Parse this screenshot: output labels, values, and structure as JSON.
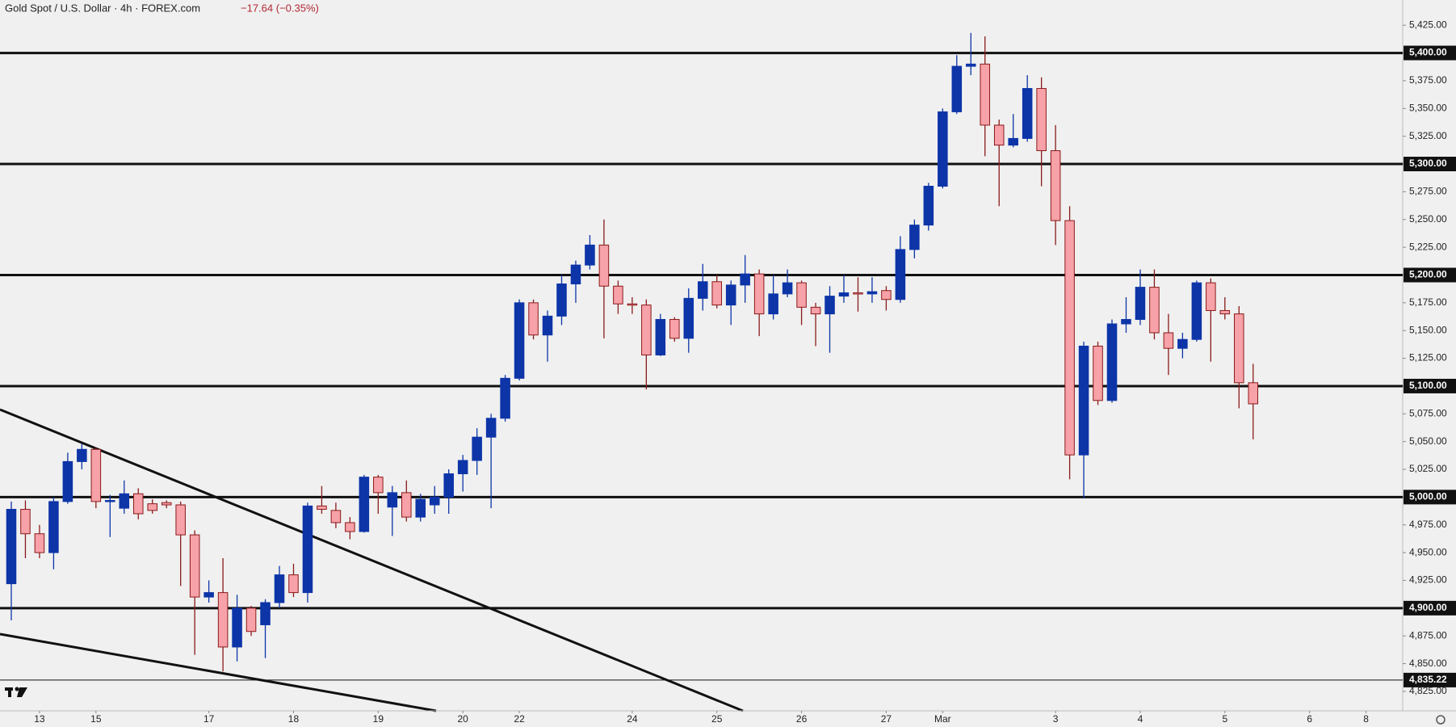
{
  "chart_data": {
    "type": "candlestick",
    "title": "Gold Spot / U.S. Dollar · 4h · FOREX.com",
    "change": "−17.64 (−0.35%)",
    "up_color": "#0d35a8",
    "down_color": "#f7a1a8",
    "down_wick_color": "#8b1a1a",
    "x": [
      0,
      1,
      2,
      3,
      4,
      5,
      6,
      7,
      8,
      9,
      10,
      11,
      12,
      13,
      14,
      15,
      16,
      17,
      18,
      19,
      20,
      21,
      22,
      23,
      24,
      25,
      26,
      27,
      28,
      29,
      30,
      31,
      32,
      33,
      34,
      35,
      36,
      37,
      38,
      39,
      40,
      41,
      42,
      43,
      44,
      45,
      46,
      47,
      48,
      49,
      50,
      51,
      52,
      53,
      54,
      55,
      56,
      57,
      58,
      59,
      60,
      61,
      62,
      63,
      64,
      65,
      66,
      67,
      68,
      69,
      70,
      71,
      72,
      73,
      74,
      75,
      76,
      77,
      78,
      79,
      80,
      81,
      82,
      83,
      84,
      85,
      86,
      87,
      88
    ],
    "open": [
      4922,
      4989,
      4967,
      4950,
      4996,
      5032,
      5043,
      4996,
      4990,
      5003,
      4994,
      4995,
      4993,
      4966,
      4910,
      4914,
      4865,
      4900,
      4885,
      4905,
      4930,
      4914,
      4992,
      4988,
      4977,
      4969,
      5018,
      4991,
      5004,
      4982,
      4993,
      5000,
      5021,
      5033,
      5054,
      5071,
      5107,
      5175,
      5146,
      5163,
      5192,
      5209,
      5227,
      5190,
      5174,
      5173,
      5128,
      5160,
      5143,
      5179,
      5194,
      5173,
      5191,
      5201,
      5165,
      5183,
      5193,
      5171,
      5165,
      5181,
      5184,
      5183,
      5186,
      5178,
      5223,
      5245,
      5280,
      5347,
      5388,
      5390,
      5335,
      5317,
      5323,
      5368,
      5312,
      5249,
      5038,
      5136,
      5087,
      5156,
      5160,
      5189,
      5148,
      5134,
      5142,
      5193,
      5168,
      5165,
      5103
    ],
    "high": [
      4996,
      4997,
      4975,
      5000,
      5040,
      5048,
      5045,
      5002,
      5015,
      5008,
      4998,
      4997,
      4996,
      4970,
      4925,
      4945,
      4912,
      4902,
      4908,
      4938,
      4940,
      4995,
      5010,
      4995,
      4982,
      5020,
      5020,
      5010,
      5015,
      5003,
      5010,
      5025,
      5038,
      5062,
      5075,
      5110,
      5178,
      5178,
      5168,
      5200,
      5213,
      5236,
      5250,
      5195,
      5180,
      5178,
      5165,
      5162,
      5188,
      5210,
      5200,
      5195,
      5218,
      5205,
      5200,
      5205,
      5195,
      5175,
      5190,
      5200,
      5198,
      5198,
      5190,
      5235,
      5250,
      5283,
      5350,
      5398,
      5418,
      5415,
      5340,
      5345,
      5380,
      5378,
      5335,
      5262,
      5140,
      5140,
      5160,
      5180,
      5205,
      5205,
      5165,
      5148,
      5195,
      5197,
      5180,
      5172,
      5120
    ],
    "low": [
      4889,
      4945,
      4945,
      4935,
      4994,
      5025,
      4990,
      4964,
      4985,
      4980,
      4985,
      4990,
      4920,
      4858,
      4905,
      4843,
      4852,
      4875,
      4855,
      4900,
      4910,
      4905,
      4985,
      4972,
      4962,
      4968,
      4985,
      4965,
      4978,
      4978,
      4985,
      4985,
      5005,
      5020,
      4990,
      5068,
      5105,
      5142,
      5122,
      5155,
      5175,
      5205,
      5143,
      5165,
      5165,
      5097,
      5127,
      5140,
      5130,
      5168,
      5170,
      5155,
      5175,
      5145,
      5160,
      5180,
      5155,
      5136,
      5130,
      5175,
      5167,
      5175,
      5168,
      5175,
      5215,
      5240,
      5278,
      5345,
      5380,
      5307,
      5262,
      5315,
      5320,
      5280,
      5227,
      5016,
      4999,
      5083,
      5085,
      5148,
      5155,
      5142,
      5110,
      5125,
      5140,
      5122,
      5160,
      5080,
      5052
    ],
    "close": [
      4989,
      4967,
      4950,
      4996,
      5032,
      5043,
      4996,
      4997,
      5003,
      4985,
      4988,
      4993,
      4966,
      4910,
      4914,
      4865,
      4900,
      4879,
      4905,
      4930,
      4914,
      4992,
      4989,
      4977,
      4969,
      5018,
      5004,
      5004,
      4982,
      4998,
      5000,
      5021,
      5033,
      5054,
      5071,
      5107,
      5175,
      5146,
      5163,
      5192,
      5209,
      5227,
      5190,
      5174,
      5173,
      5128,
      5160,
      5143,
      5179,
      5194,
      5173,
      5191,
      5201,
      5165,
      5183,
      5193,
      5171,
      5165,
      5181,
      5184,
      5183,
      5185,
      5178,
      5223,
      5245,
      5280,
      5347,
      5388,
      5390,
      5335,
      5317,
      5323,
      5368,
      5312,
      5249,
      5038,
      5136,
      5087,
      5156,
      5160,
      5189,
      5148,
      5134,
      5142,
      5193,
      5168,
      5165,
      5103,
      5084
    ],
    "xlim": [
      -0.8,
      98.6
    ],
    "xticks": [
      {
        "value": 2,
        "label": "13"
      },
      {
        "value": 6,
        "label": "15"
      },
      {
        "value": 14,
        "label": "17"
      },
      {
        "value": 20,
        "label": "18"
      },
      {
        "value": 26,
        "label": "19"
      },
      {
        "value": 32,
        "label": "20"
      },
      {
        "value": 36,
        "label": "22"
      },
      {
        "value": 44,
        "label": "24"
      },
      {
        "value": 50,
        "label": "25"
      },
      {
        "value": 56,
        "label": "26"
      },
      {
        "value": 62,
        "label": "27"
      },
      {
        "value": 66,
        "label": "Mar"
      },
      {
        "value": 74,
        "label": "3"
      },
      {
        "value": 80,
        "label": "4"
      },
      {
        "value": 86,
        "label": "5"
      },
      {
        "value": 92,
        "label": "6"
      },
      {
        "value": 96,
        "label": "8"
      }
    ],
    "ylim": [
      4807.5,
      5447.7
    ],
    "yticks": [
      {
        "value": 4825,
        "label": "4,825.00"
      },
      {
        "value": 4850,
        "label": "4,850.00"
      },
      {
        "value": 4875,
        "label": "4,875.00"
      },
      {
        "value": 4900,
        "label": "4,900.00"
      },
      {
        "value": 4925,
        "label": "4,925.00"
      },
      {
        "value": 4950,
        "label": "4,950.00"
      },
      {
        "value": 4975,
        "label": "4,975.00"
      },
      {
        "value": 5000,
        "label": "5,000.00"
      },
      {
        "value": 5025,
        "label": "5,025.00"
      },
      {
        "value": 5050,
        "label": "5,050.00"
      },
      {
        "value": 5075,
        "label": "5,075.00"
      },
      {
        "value": 5100,
        "label": "5,100.00"
      },
      {
        "value": 5125,
        "label": "5,125.00"
      },
      {
        "value": 5150,
        "label": "5,150.00"
      },
      {
        "value": 5175,
        "label": "5,175.00"
      },
      {
        "value": 5200,
        "label": "5,200.00"
      },
      {
        "value": 5225,
        "label": "5,225.00"
      },
      {
        "value": 5250,
        "label": "5,250.00"
      },
      {
        "value": 5275,
        "label": "5,275.00"
      },
      {
        "value": 5300,
        "label": "5,300.00"
      },
      {
        "value": 5325,
        "label": "5,325.00"
      },
      {
        "value": 5350,
        "label": "5,350.00"
      },
      {
        "value": 5375,
        "label": "5,375.00"
      },
      {
        "value": 5400,
        "label": "5,400.00"
      },
      {
        "value": 5425,
        "label": "5,425.00"
      }
    ],
    "levels": [
      4900,
      5000,
      5100,
      5200,
      5300,
      5400
    ],
    "price_line": {
      "value": 4835.22,
      "label": "4,835.22"
    }
  }
}
